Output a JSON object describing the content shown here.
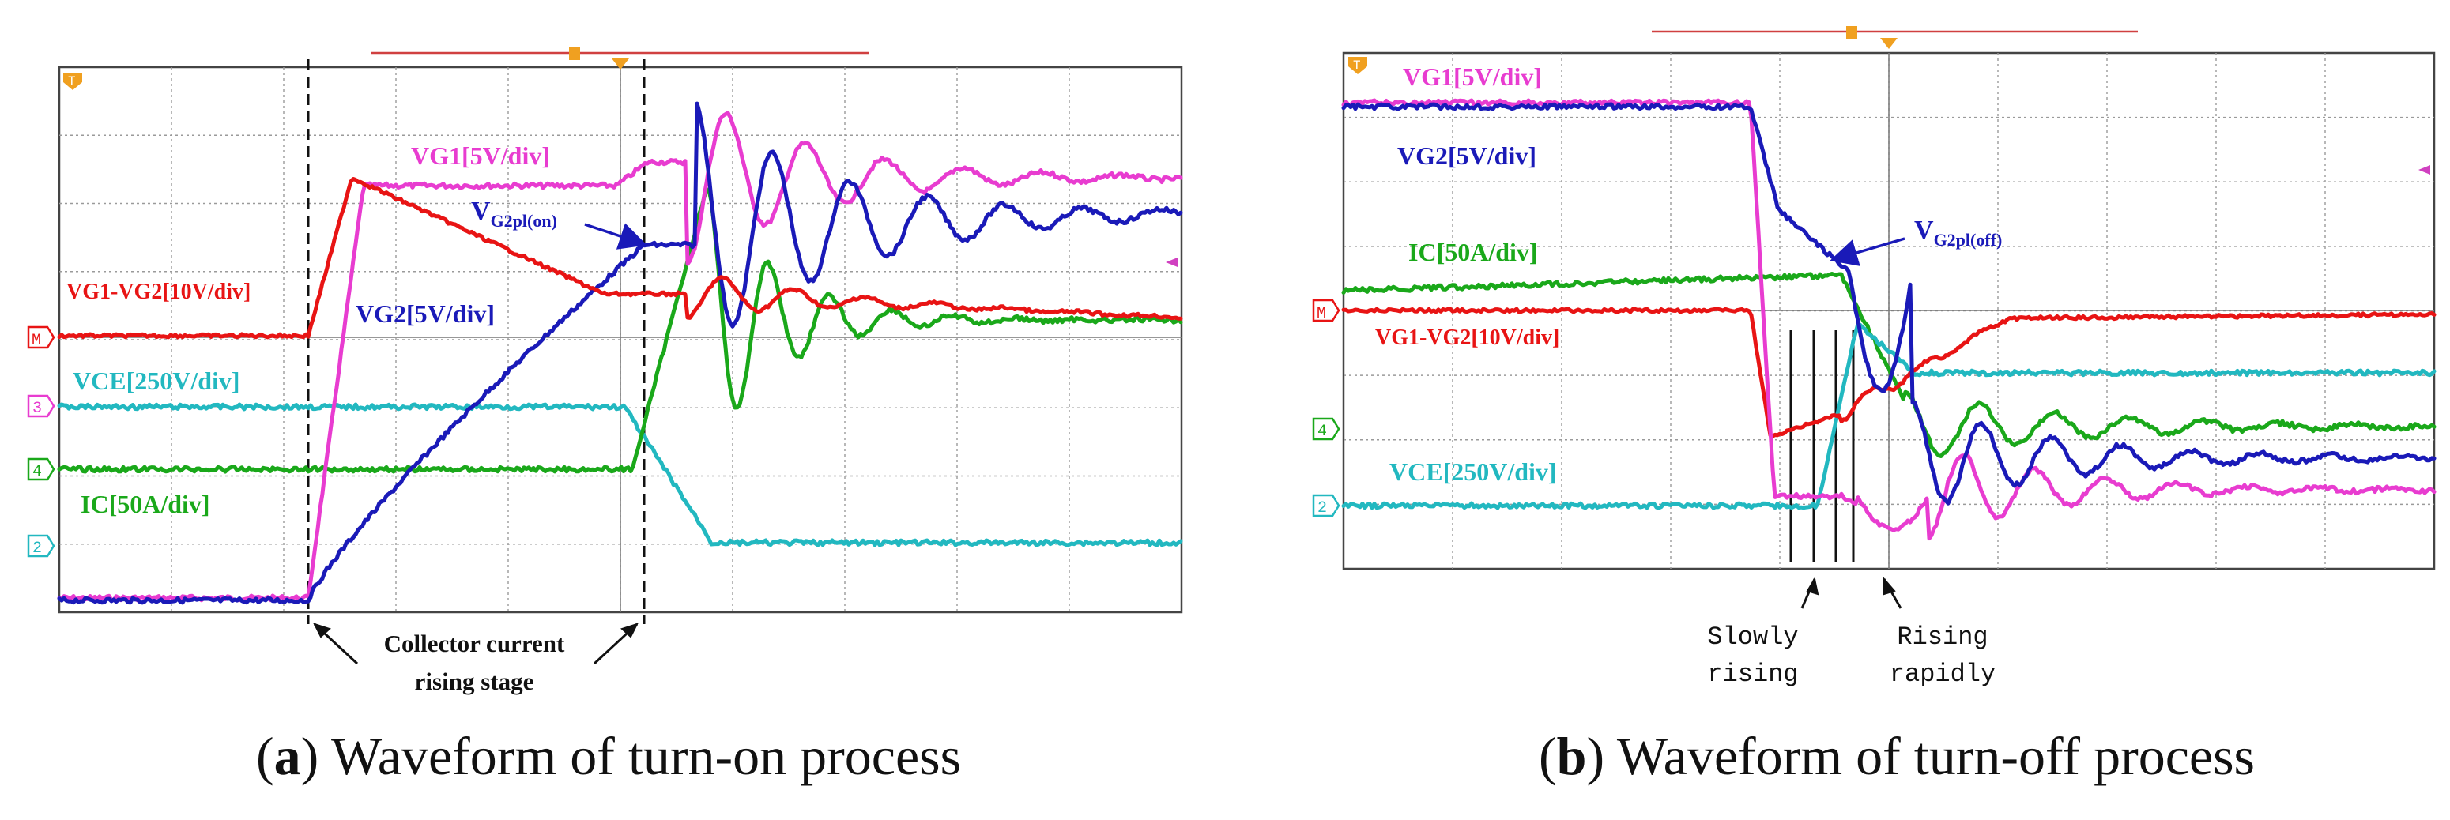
{
  "chart_data": [
    {
      "type": "line",
      "panel": "a",
      "caption_letter": "a",
      "caption_text": " Waveform of turn-on process",
      "channel_markers": [
        "M",
        "3",
        "4",
        "2"
      ],
      "trigger_marker": "T",
      "series": [
        {
          "name": "VG1",
          "label": "VG1[5V/div]",
          "color": "#e83cd0"
        },
        {
          "name": "VG2",
          "label": "VG2[5V/div]",
          "color": "#1a1ab8"
        },
        {
          "name": "VG1-VG2",
          "label": "VG1-VG2[10V/div]",
          "color": "#e81414"
        },
        {
          "name": "VCE",
          "label": "VCE[250V/div]",
          "color": "#22b8c0"
        },
        {
          "name": "IC",
          "label": "IC[50A/div]",
          "color": "#1aa81a"
        }
      ],
      "annotation_vgpl": {
        "main": "V",
        "sub": "G2pl(on)"
      },
      "annotation_stage": [
        "Collector current",
        "rising stage"
      ]
    },
    {
      "type": "line",
      "panel": "b",
      "caption_letter": "b",
      "caption_text": " Waveform of turn-off process",
      "channel_markers": [
        "M",
        "4",
        "2"
      ],
      "trigger_marker": "T",
      "series": [
        {
          "name": "VG1",
          "label": "VG1[5V/div]",
          "color": "#e83cd0"
        },
        {
          "name": "VG2",
          "label": "VG2[5V/div]",
          "color": "#1a1ab8"
        },
        {
          "name": "IC",
          "label": "IC[50A/div]",
          "color": "#1aa81a"
        },
        {
          "name": "VG1-VG2",
          "label": "VG1-VG2[10V/div]",
          "color": "#e81414"
        },
        {
          "name": "VCE",
          "label": "VCE[250V/div]",
          "color": "#22b8c0"
        }
      ],
      "annotation_vgpl": {
        "main": "V",
        "sub": "G2pl(off)"
      },
      "annotation_slow": [
        "Slowly",
        "rising"
      ],
      "annotation_fast": [
        "Rising",
        "rapidly"
      ]
    }
  ]
}
